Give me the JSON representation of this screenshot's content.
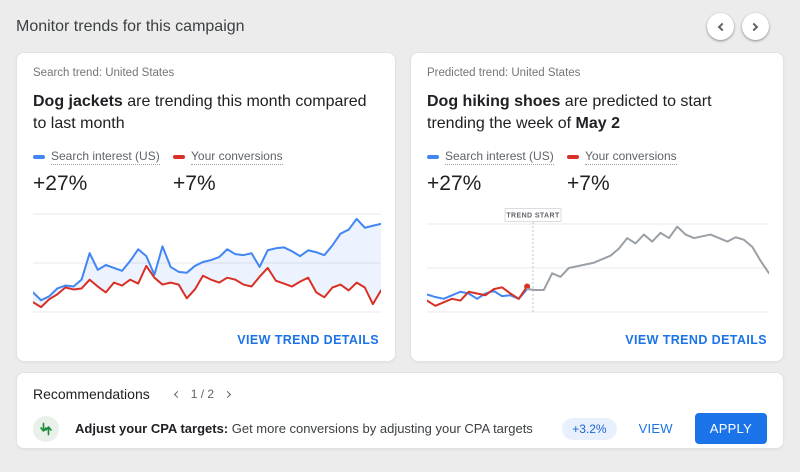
{
  "page": {
    "title": "Monitor trends for this campaign"
  },
  "colors": {
    "accent_blue": "#1a73e8",
    "series_blue": "#4285f4",
    "series_red": "#d93025",
    "predicted_gray": "#9aa0a6",
    "positive_green": "#1e8e3e",
    "impact_pill_bg": "#e8f0fe",
    "impact_pill_text": "#1967d2"
  },
  "cards": [
    {
      "label": "Search trend: United States",
      "title_bold1": "Dog jackets",
      "title_mid": " are trending this month compared to last month",
      "title_bold2": "",
      "stats": [
        "+27%",
        "+7%"
      ],
      "link": "VIEW TREND DETAILS"
    },
    {
      "label": "Predicted trend: United States",
      "title_bold1": "Dog hiking shoes",
      "title_mid": " are predicted to start trending the week of ",
      "title_bold2": "May 2",
      "stats": [
        "+27%",
        "+7%"
      ],
      "link": "VIEW TREND DETAILS"
    }
  ],
  "chart_data": [
    {
      "type": "line",
      "title": "Search trend: United States — Dog jackets",
      "x_axis": "weeks (unlabeled)",
      "ylim": [
        0,
        100
      ],
      "grid_values": [
        0,
        50,
        100
      ],
      "legend_position": "above-chart",
      "area_between": [
        0,
        1
      ],
      "area_color": "rgba(66,133,244,0.10)",
      "series": [
        {
          "name": "Search interest (US)",
          "color": "#4285f4",
          "change": "+27%",
          "values": [
            20,
            12,
            16,
            24,
            27,
            26,
            33,
            60,
            43,
            48,
            45,
            42,
            52,
            64,
            57,
            38,
            67,
            46,
            41,
            40,
            47,
            51,
            53,
            56,
            64,
            59,
            58,
            60,
            46,
            63,
            65,
            66,
            62,
            57,
            63,
            61,
            58,
            68,
            80,
            84,
            95,
            86,
            88,
            90
          ]
        },
        {
          "name": "Your conversions",
          "color": "#d93025",
          "change": "+7%",
          "values": [
            10,
            5,
            13,
            18,
            25,
            23,
            24,
            33,
            26,
            20,
            30,
            27,
            33,
            29,
            47,
            35,
            28,
            30,
            28,
            14,
            23,
            37,
            33,
            30,
            35,
            33,
            28,
            26,
            36,
            45,
            32,
            29,
            26,
            31,
            35,
            20,
            15,
            25,
            28,
            22,
            30,
            25,
            8,
            22
          ]
        }
      ]
    },
    {
      "type": "line",
      "title": "Predicted trend: United States — Dog hiking shoes",
      "x_axis": "weeks (unlabeled)",
      "ylim": [
        0,
        100
      ],
      "grid_values": [
        0,
        50,
        100
      ],
      "legend_position": "above-chart",
      "marker": {
        "label": "TREND START",
        "fraction": 0.31
      },
      "series": [
        {
          "name": "Search interest (US)",
          "color": "#4285f4",
          "change": "+27%",
          "values": [
            20,
            17,
            15,
            19,
            23,
            21,
            15,
            21,
            24,
            18,
            19,
            15,
            26,
            null,
            null,
            null,
            null,
            null,
            null,
            null,
            null,
            null,
            null,
            null,
            null,
            null,
            null,
            null,
            null,
            null,
            null,
            null,
            null,
            null,
            null,
            null,
            null,
            null,
            null,
            null,
            null,
            null
          ]
        },
        {
          "name": "Your conversions",
          "color": "#d93025",
          "change": "+7%",
          "end_dot": true,
          "values": [
            13,
            7,
            11,
            15,
            13,
            23,
            21,
            19,
            26,
            28,
            21,
            15,
            29,
            null,
            null,
            null,
            null,
            null,
            null,
            null,
            null,
            null,
            null,
            null,
            null,
            null,
            null,
            null,
            null,
            null,
            null,
            null,
            null,
            null,
            null,
            null,
            null,
            null,
            null,
            null,
            null,
            null
          ]
        },
        {
          "name": "Predicted trend",
          "color": "#9aa0a6",
          "values": [
            null,
            null,
            null,
            null,
            null,
            null,
            null,
            null,
            null,
            null,
            null,
            null,
            26,
            25,
            25,
            44,
            40,
            50,
            52,
            54,
            56,
            60,
            64,
            72,
            84,
            78,
            88,
            80,
            90,
            84,
            97,
            88,
            84,
            86,
            88,
            84,
            80,
            85,
            82,
            74,
            58,
            44
          ]
        }
      ]
    }
  ],
  "recommendations": {
    "title": "Recommendations",
    "pager": "1 / 2",
    "item": {
      "bold": "Adjust your CPA targets:",
      "text": " Get more conversions by adjusting your CPA targets",
      "impact": "+3.2%",
      "view": "VIEW",
      "apply": "APPLY"
    }
  }
}
